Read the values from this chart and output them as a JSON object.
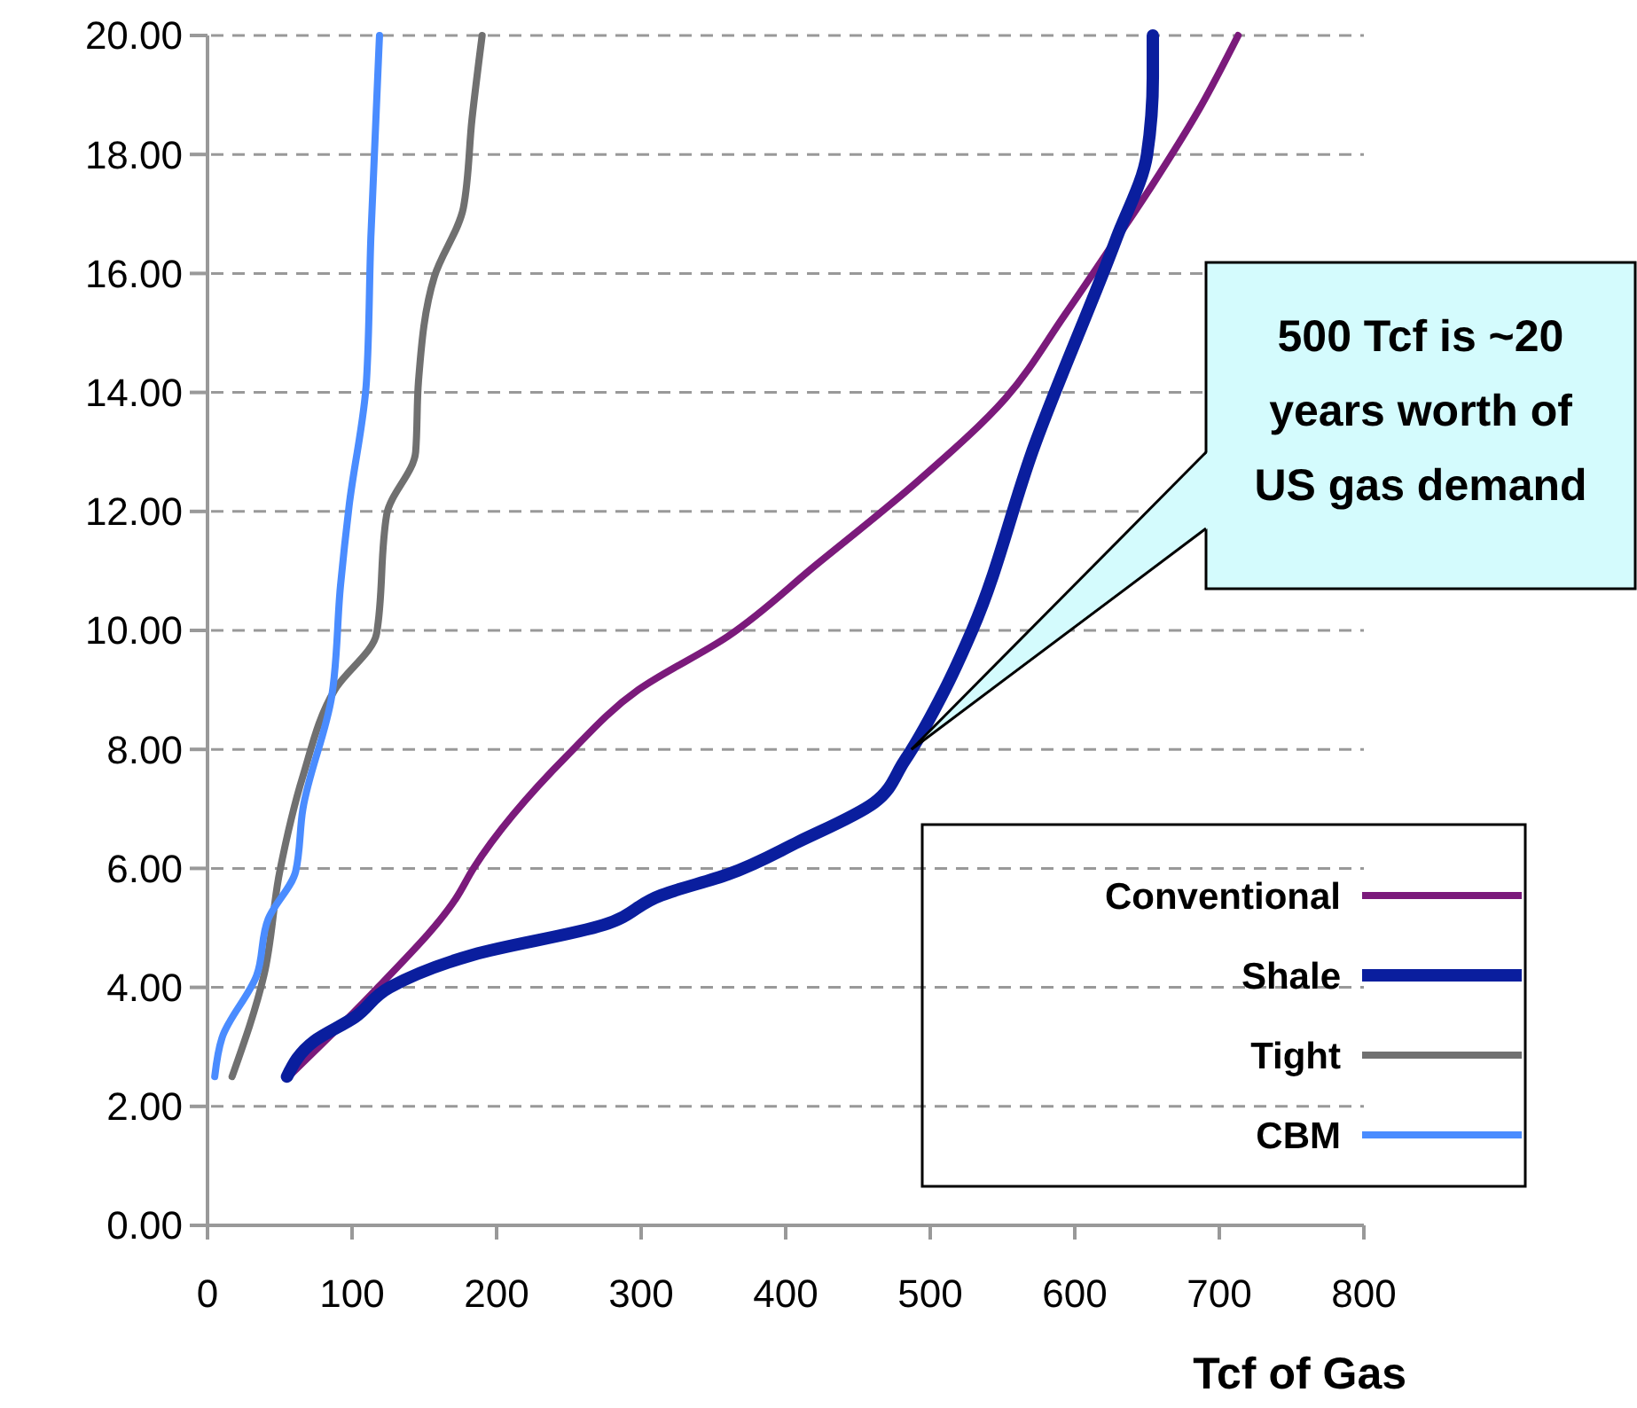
{
  "chart_data": {
    "type": "line",
    "xlabel": "Tcf of Gas",
    "xlim": [
      0,
      800
    ],
    "xticks": [
      0,
      100,
      200,
      300,
      400,
      500,
      600,
      700,
      800
    ],
    "ylim": [
      0,
      20
    ],
    "yticks": [
      {
        "value": 0,
        "label": "0.00"
      },
      {
        "value": 2,
        "label": "2.00"
      },
      {
        "value": 4,
        "label": "4.00"
      },
      {
        "value": 6,
        "label": "6.00"
      },
      {
        "value": 8,
        "label": "8.00"
      },
      {
        "value": 10,
        "label": "10.00"
      },
      {
        "value": 12,
        "label": "12.00"
      },
      {
        "value": 14,
        "label": "14.00"
      },
      {
        "value": 16,
        "label": "16.00"
      },
      {
        "value": 18,
        "label": "18.00"
      },
      {
        "value": 20,
        "label": "20.00"
      }
    ],
    "grid": "y",
    "legend": "bottom right",
    "marker": "none",
    "line_style": "solid",
    "series": [
      {
        "name": "Conventional",
        "color": "#7b1a7b",
        "x": [
          56,
          118,
          172,
          184,
          249,
          298,
          360,
          421,
          491,
          552,
          593,
          621,
          654,
          687,
          713
        ],
        "values": [
          2.5,
          4.0,
          5.5,
          6.0,
          7.9,
          9.0,
          9.9,
          11.1,
          12.5,
          13.9,
          15.3,
          16.3,
          17.5,
          18.8,
          20
        ]
      },
      {
        "name": "Shale",
        "color": "#0a1e9e",
        "x": [
          55,
          74,
          102,
          126,
          184,
          274,
          314,
          360,
          409,
          461,
          482,
          510,
          529,
          572,
          629,
          650,
          654,
          654
        ],
        "values": [
          2.5,
          3.1,
          3.5,
          4.0,
          4.55,
          5.05,
          5.55,
          5.9,
          6.45,
          7.1,
          7.8,
          9.0,
          10.0,
          13.1,
          16.6,
          18.0,
          19.3,
          20
        ]
      },
      {
        "name": "Tight",
        "color": "#707070",
        "x": [
          17,
          39,
          50,
          66,
          88,
          117,
          124,
          144,
          146,
          157,
          177,
          183,
          190
        ],
        "values": [
          2.5,
          4.2,
          5.95,
          7.55,
          9.0,
          9.95,
          11.95,
          13.0,
          14.2,
          15.95,
          17.1,
          18.6,
          20
        ]
      },
      {
        "name": "CBM",
        "color": "#4a8cff",
        "x": [
          5,
          10,
          34,
          42,
          61,
          66,
          86,
          92,
          98,
          110,
          113,
          119
        ],
        "values": [
          2.5,
          3.15,
          4.2,
          5.15,
          5.95,
          7.0,
          8.9,
          10.75,
          12.1,
          14.2,
          16.6,
          20
        ]
      }
    ],
    "annotations": [
      {
        "text": "500 Tcf is ~20 years worth of US gas demand",
        "x": 487,
        "y": 8
      }
    ]
  }
}
